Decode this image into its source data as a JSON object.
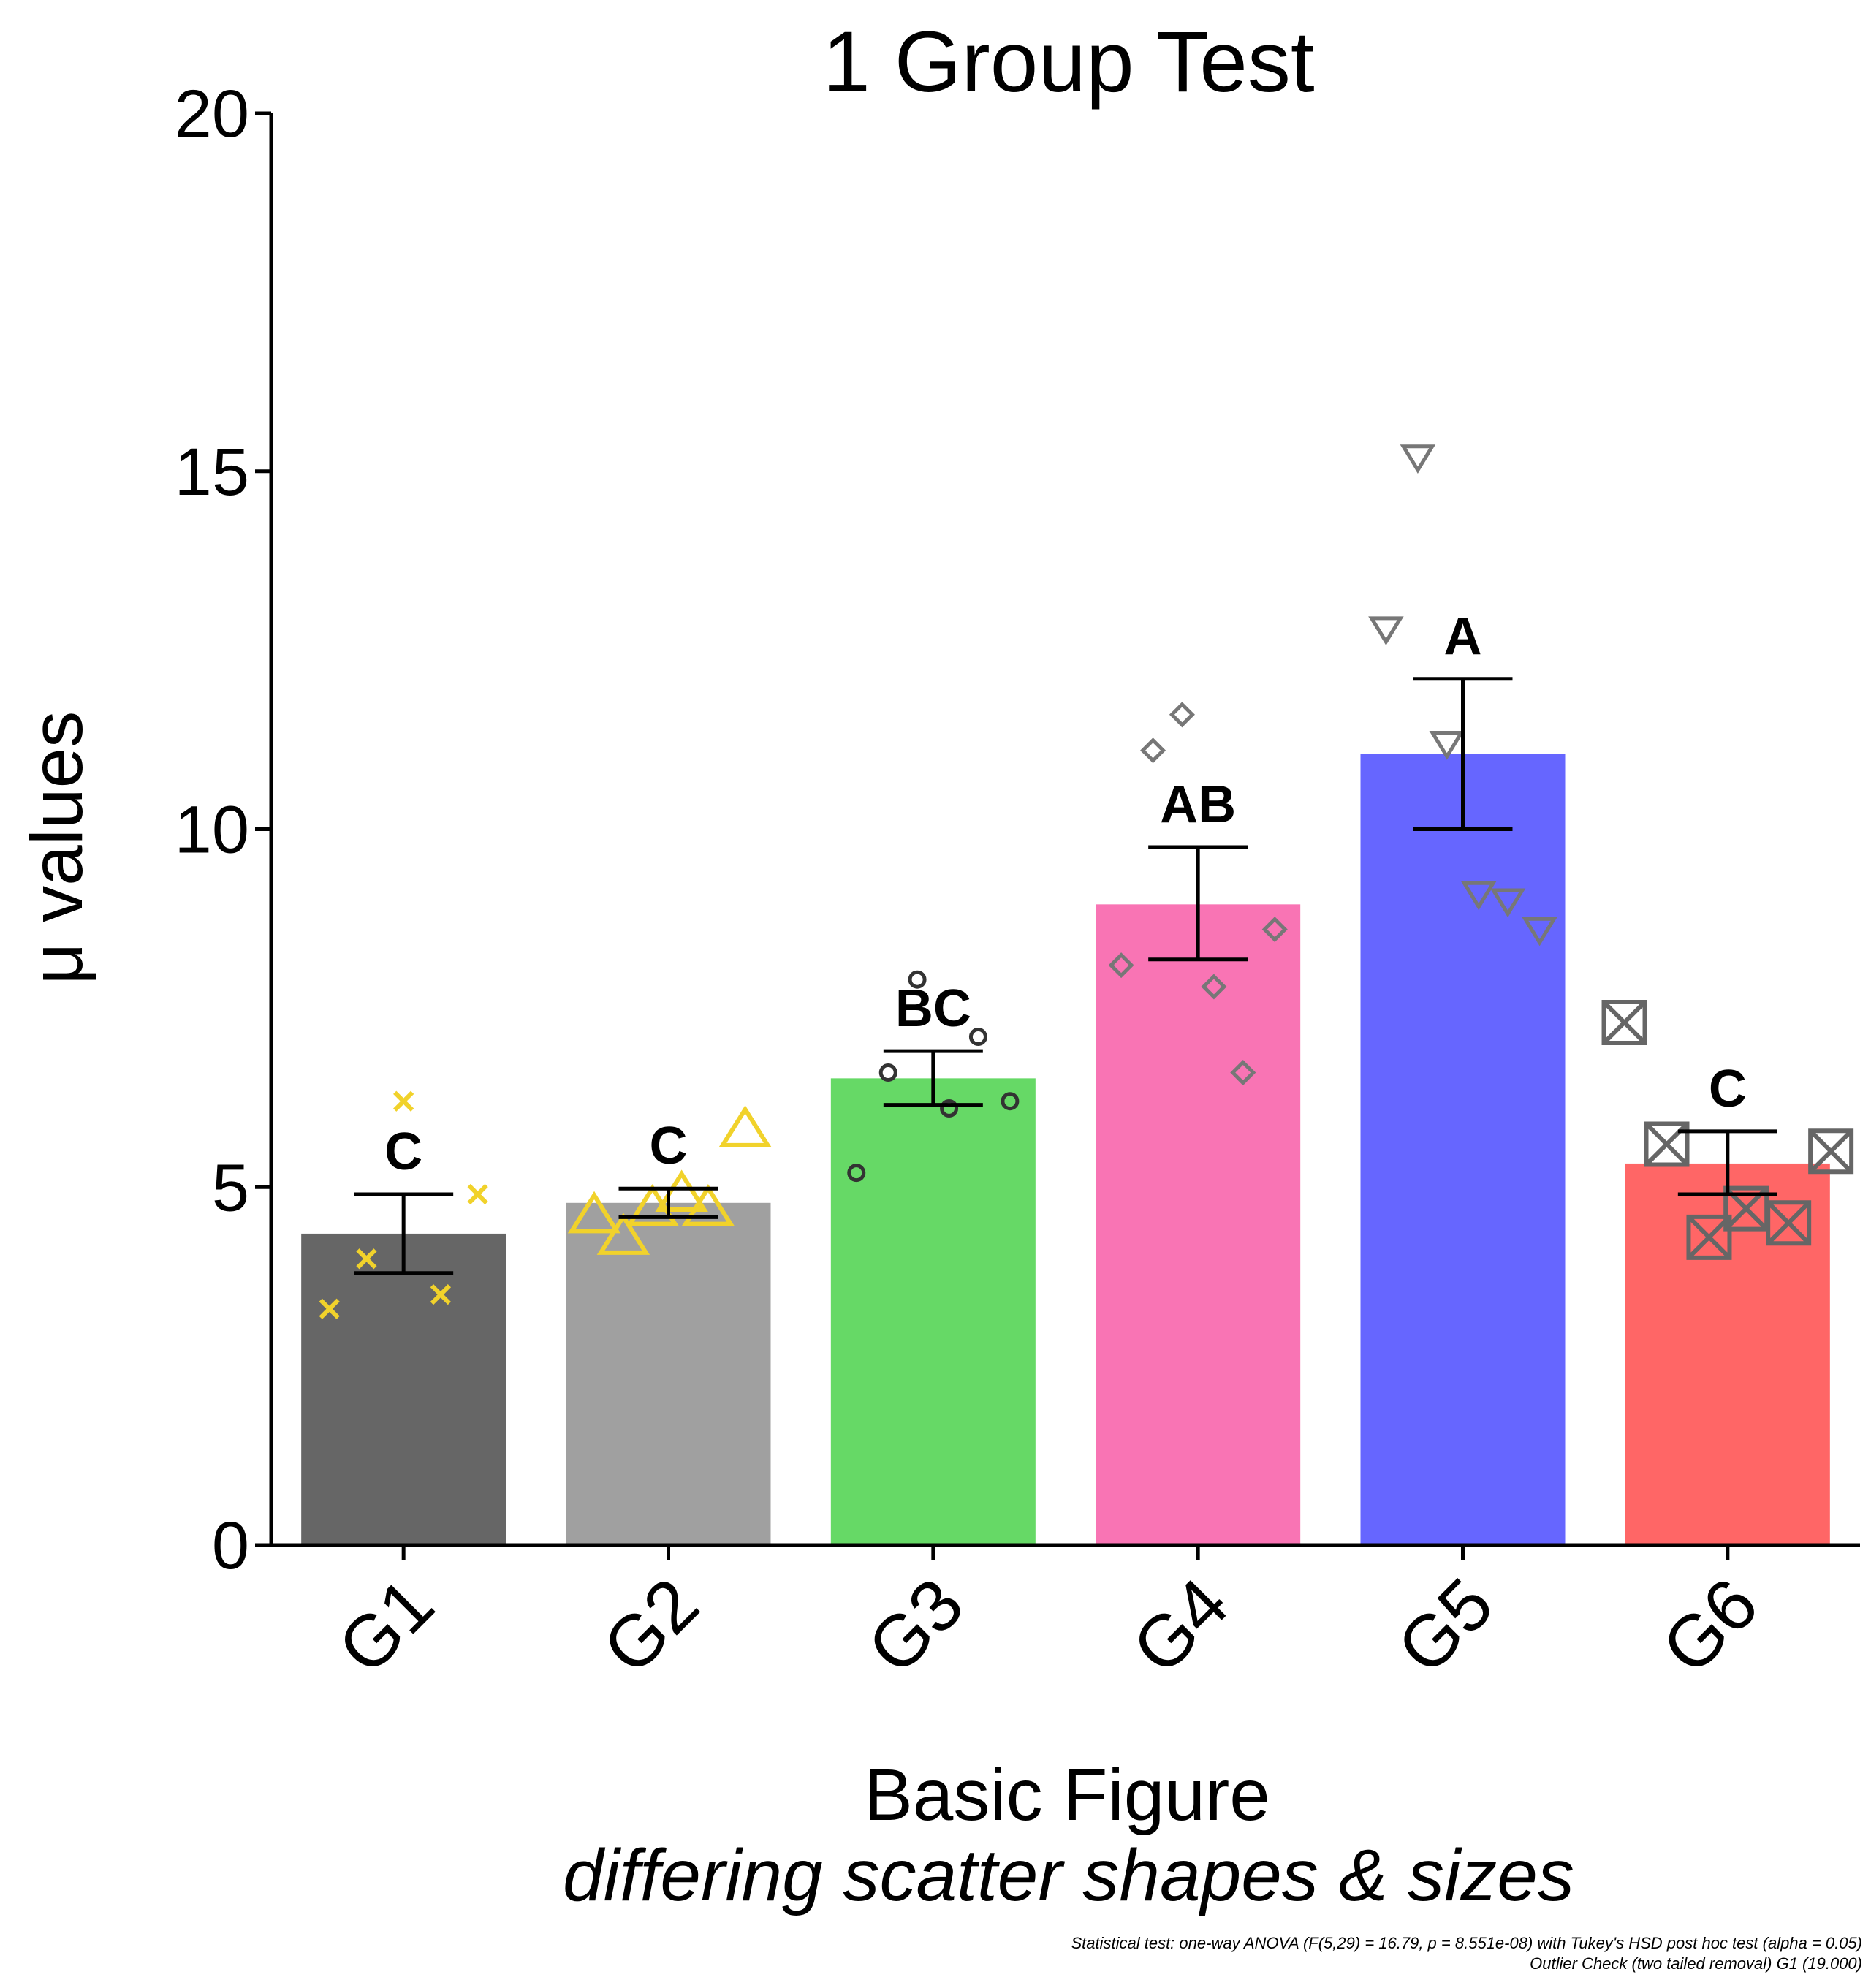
{
  "chart_data": {
    "type": "bar",
    "title": "1 Group Test",
    "xlabel": "Basic Figure",
    "subtitle": "differing scatter shapes & sizes",
    "ylabel": "μ values",
    "ylim": [
      0,
      20
    ],
    "yticks": [
      "0",
      "5",
      "10",
      "15",
      "20"
    ],
    "categories": [
      "G1",
      "G2",
      "G3",
      "G4",
      "G5",
      "G6"
    ],
    "values": [
      4.35,
      4.78,
      6.52,
      8.95,
      11.05,
      5.33
    ],
    "error_low": [
      3.8,
      4.58,
      6.15,
      8.18,
      10.0,
      4.9
    ],
    "error_high": [
      4.9,
      4.98,
      6.9,
      9.75,
      12.1,
      5.78
    ],
    "colors": [
      "#666666",
      "#a0a0a0",
      "#66d966",
      "#f974b4",
      "#6666ff",
      "#ff6666"
    ],
    "significance": [
      "C",
      "C",
      "BC",
      "AB",
      "A",
      "C"
    ],
    "points": [
      {
        "marker": "x",
        "color": "#f1d22b",
        "x_offset": [
          -0.28,
          -0.14,
          0.14,
          0.28,
          0.0
        ],
        "values": [
          3.3,
          4.0,
          3.5,
          4.9,
          6.2
        ]
      },
      {
        "marker": "triangle",
        "color": "#f1d22b",
        "x_offset": [
          -0.28,
          -0.17,
          -0.06,
          0.05,
          0.15,
          0.29
        ],
        "values": [
          4.6,
          4.3,
          4.7,
          4.9,
          4.7,
          5.8
        ]
      },
      {
        "marker": "circle",
        "color": "#333333",
        "x_offset": [
          -0.29,
          -0.17,
          -0.06,
          0.06,
          0.17,
          0.29
        ],
        "values": [
          5.2,
          6.6,
          7.9,
          6.1,
          7.1,
          6.2
        ]
      },
      {
        "marker": "diamond",
        "color": "#777777",
        "x_offset": [
          -0.29,
          -0.17,
          -0.06,
          0.06,
          0.17,
          0.29
        ],
        "values": [
          8.1,
          11.1,
          11.6,
          7.8,
          6.6,
          8.6
        ]
      },
      {
        "marker": "triangle-down",
        "color": "#777777",
        "x_offset": [
          -0.29,
          -0.17,
          -0.06,
          0.06,
          0.17,
          0.29
        ],
        "values": [
          12.8,
          15.2,
          11.2,
          9.1,
          9.0,
          8.6
        ]
      },
      {
        "marker": "square-x",
        "color": "#666666",
        "x_offset": [
          -0.39,
          -0.23,
          -0.07,
          0.07,
          0.23,
          0.39
        ],
        "values": [
          7.3,
          5.6,
          4.3,
          4.7,
          4.5,
          5.5
        ]
      }
    ],
    "legend": "none",
    "grid": false,
    "footnote": [
      "Statistical test:  one-way ANOVA (F(5,29) = 16.79, p = 8.551e-08) with Tukey's HSD post hoc test (alpha = 0.05)",
      "Outlier Check (two tailed removal) G1 (19.000)"
    ]
  }
}
